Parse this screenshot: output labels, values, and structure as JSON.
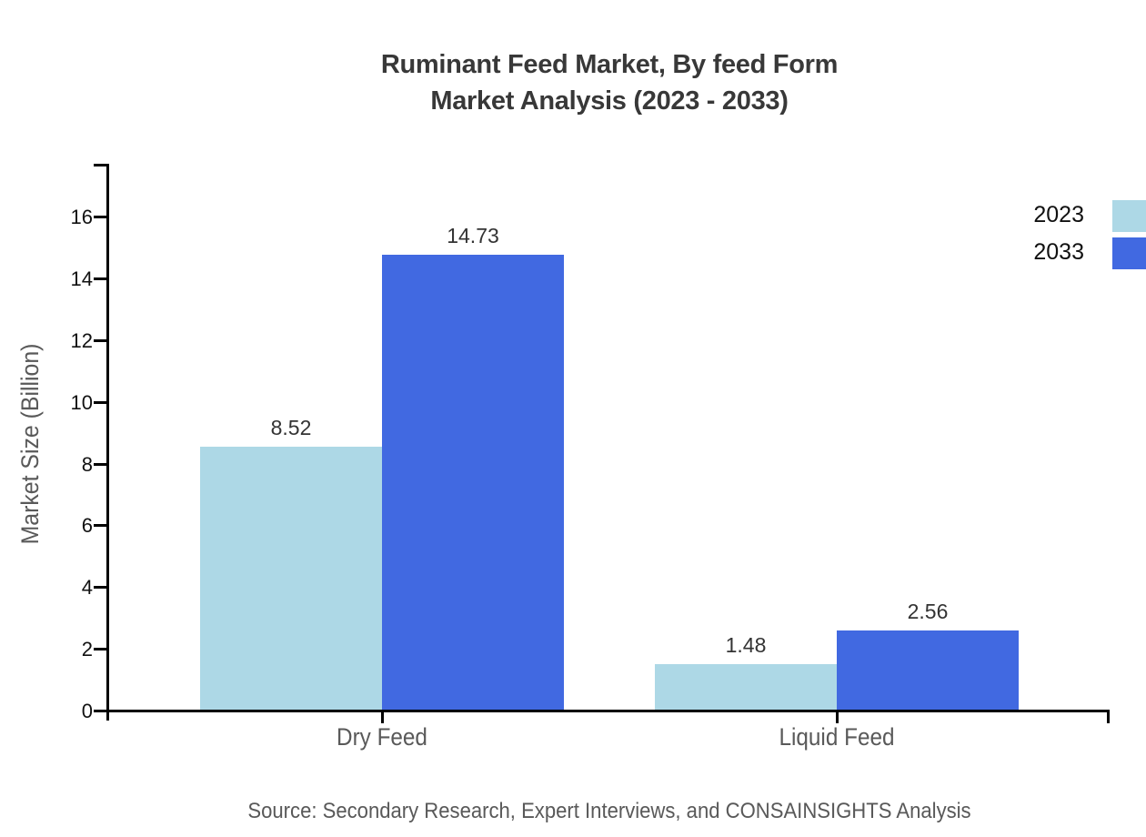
{
  "title": {
    "line1": "Ruminant Feed Market, By feed Form",
    "line2": "Market Analysis (2023 - 2033)"
  },
  "source": "Source: Secondary Research, Expert Interviews, and CONSAINSIGHTS Analysis",
  "chart_data": {
    "type": "bar",
    "title": "Ruminant Feed Market, By feed Form Market Analysis (2023 - 2033)",
    "categories": [
      "Dry Feed",
      "Liquid Feed"
    ],
    "series": [
      {
        "name": "2023",
        "color": "#ADD8E6",
        "values": [
          8.52,
          1.48
        ]
      },
      {
        "name": "2033",
        "color": "#4169E1",
        "values": [
          14.73,
          2.56
        ]
      }
    ],
    "xlabel": "",
    "ylabel": "Market Size (Billion)",
    "yticks": [
      0,
      2,
      4,
      6,
      8,
      10,
      12,
      14,
      16
    ],
    "ylim": [
      0,
      17.7
    ],
    "grid": false,
    "legend_position": "top-right",
    "value_labels": true
  },
  "colors": {
    "axis": "#000000",
    "title_text": "#383838",
    "tick_text": "#111111",
    "gray_text": "#595959",
    "value_text": "#333333",
    "background": "#ffffff"
  }
}
